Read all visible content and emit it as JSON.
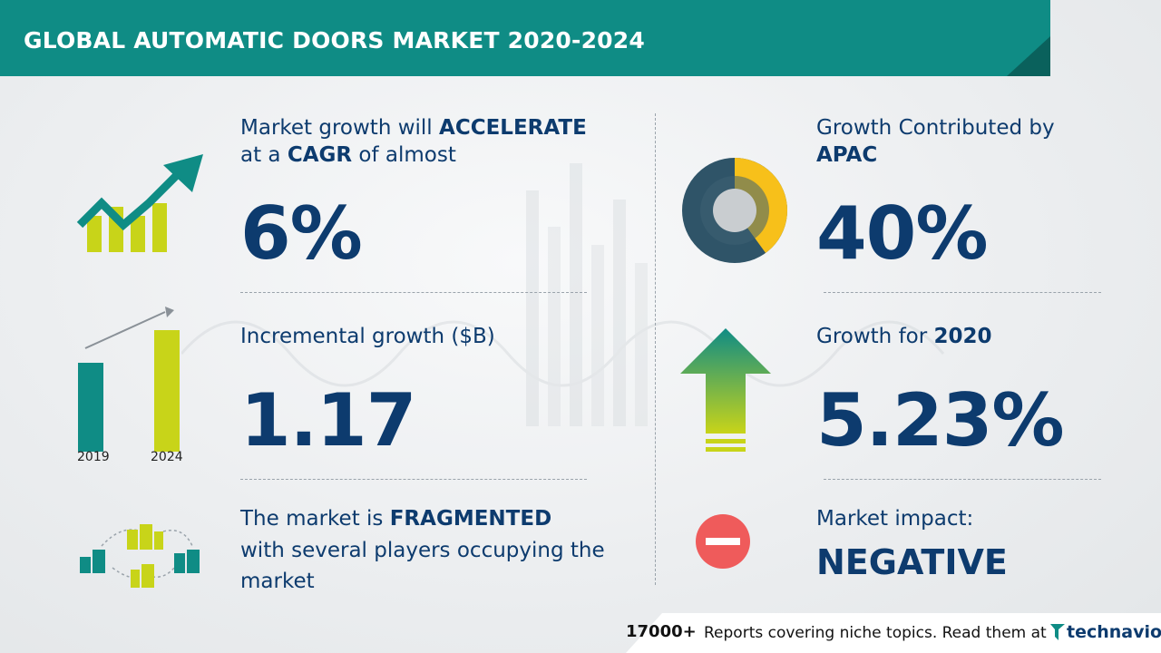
{
  "header": {
    "title": "GLOBAL AUTOMATIC DOORS MARKET 2020-2024"
  },
  "cagr": {
    "line1_prefix": "Market growth will ",
    "line1_bold": "ACCELERATE",
    "line2_prefix": "at a ",
    "line2_bold": "CAGR",
    "line2_suffix": " of almost",
    "value": "6%"
  },
  "incremental": {
    "label": "Incremental growth ($B)",
    "value": "1.17",
    "years": [
      "2019",
      "2024"
    ]
  },
  "fragmented": {
    "line1_prefix": "The market is ",
    "line1_bold": "FRAGMENTED",
    "line2": "with several players occupying the",
    "line3": "market"
  },
  "apac": {
    "line1": "Growth Contributed by",
    "line2_bold": "APAC",
    "value": "40%",
    "share": 0.4
  },
  "growth2020": {
    "label_prefix": "Growth for ",
    "label_bold": "2020",
    "value": "5.23%"
  },
  "impact": {
    "label": "Market impact:",
    "value": "NEGATIVE"
  },
  "footer": {
    "count": "17000+",
    "text": "Reports covering niche topics. Read them at",
    "brand": "technavio"
  },
  "colors": {
    "teal": "#0f8c85",
    "navy": "#0d3b6e",
    "yellow_green": "#c8d419",
    "red": "#ef5b5b",
    "donut_dark": "#2f5468",
    "donut_yellow": "#f7c01a"
  }
}
